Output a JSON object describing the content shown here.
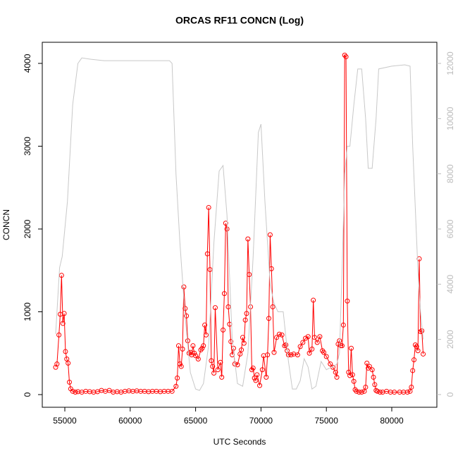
{
  "chart_data": {
    "type": "line",
    "title": "ORCAS RF11 CONCN (Log)",
    "x_label": "UTC Seconds",
    "y_label": "CONCN",
    "xlim": [
      53276,
      83448
    ],
    "ylim": [
      -153,
      4255
    ],
    "y2lim": [
      -460,
      12766
    ],
    "xticks": [
      55000,
      60000,
      65000,
      70000,
      75000,
      80000
    ],
    "yticks": [
      0,
      1000,
      2000,
      3000,
      4000
    ],
    "y2ticks": [
      0,
      2000,
      4000,
      6000,
      8000,
      10000,
      12000
    ],
    "y2_color": "#bbbbbb",
    "series": [
      {
        "color": "#ff0000",
        "markers": true,
        "x": [
          54300,
          54400,
          54550,
          54650,
          54750,
          54850,
          54950,
          55050,
          55150,
          55250,
          55350,
          55450,
          55600,
          55800,
          56000,
          56300,
          56600,
          56900,
          57200,
          57500,
          57800,
          58100,
          58400,
          58700,
          59000,
          59300,
          59600,
          59900,
          60200,
          60500,
          60800,
          61100,
          61400,
          61700,
          62000,
          62300,
          62600,
          62900,
          63200,
          63500,
          63600,
          63700,
          63800,
          63900,
          64000,
          64100,
          64200,
          64300,
          64400,
          64500,
          64600,
          64700,
          64800,
          64900,
          65000,
          65200,
          65400,
          65500,
          65600,
          65700,
          65800,
          65900,
          66000,
          66100,
          66200,
          66300,
          66400,
          66500,
          66700,
          66900,
          67000,
          67100,
          67200,
          67300,
          67400,
          67500,
          67600,
          67700,
          67800,
          67900,
          68000,
          68200,
          68400,
          68500,
          68600,
          68700,
          68800,
          68900,
          69000,
          69100,
          69200,
          69300,
          69400,
          69500,
          69600,
          69700,
          69900,
          70100,
          70200,
          70400,
          70500,
          70600,
          70700,
          70800,
          70900,
          71000,
          71200,
          71400,
          71600,
          71800,
          71900,
          72000,
          72100,
          72300,
          72500,
          72800,
          73000,
          73200,
          73400,
          73600,
          73700,
          73900,
          74000,
          74100,
          74300,
          74500,
          74700,
          74800,
          75000,
          75300,
          75500,
          75700,
          75800,
          75900,
          76000,
          76100,
          76200,
          76300,
          76400,
          76500,
          76600,
          76700,
          76800,
          76900,
          77000,
          77100,
          77200,
          77300,
          77500,
          77700,
          77900,
          78000,
          78100,
          78200,
          78300,
          78500,
          78600,
          78700,
          78800,
          78900,
          79100,
          79300,
          79600,
          79900,
          80200,
          80600,
          80900,
          81200,
          81400,
          81500,
          81600,
          81700,
          81800,
          81900,
          82000,
          82100,
          82200,
          82300,
          82400
        ],
        "values": [
          330,
          370,
          720,
          970,
          1440,
          860,
          980,
          520,
          430,
          380,
          150,
          70,
          40,
          30,
          35,
          30,
          40,
          35,
          30,
          35,
          50,
          40,
          50,
          30,
          35,
          30,
          40,
          45,
          40,
          45,
          40,
          40,
          35,
          40,
          40,
          35,
          40,
          40,
          40,
          100,
          200,
          590,
          370,
          340,
          550,
          1300,
          1040,
          950,
          650,
          500,
          510,
          480,
          590,
          500,
          470,
          430,
          540,
          560,
          590,
          840,
          720,
          1700,
          2260,
          1510,
          410,
          340,
          260,
          1050,
          300,
          390,
          210,
          780,
          1220,
          2070,
          2000,
          1060,
          850,
          640,
          480,
          560,
          370,
          360,
          490,
          540,
          690,
          620,
          900,
          980,
          1880,
          1450,
          1060,
          300,
          320,
          200,
          170,
          240,
          110,
          300,
          470,
          210,
          480,
          920,
          1930,
          1520,
          1060,
          510,
          690,
          730,
          720,
          590,
          600,
          530,
          480,
          480,
          490,
          480,
          580,
          630,
          680,
          700,
          500,
          550,
          1140,
          690,
          630,
          700,
          530,
          510,
          460,
          370,
          330,
          270,
          210,
          610,
          650,
          590,
          590,
          840,
          4100,
          4080,
          1130,
          270,
          230,
          560,
          240,
          160,
          60,
          40,
          30,
          30,
          40,
          90,
          380,
          320,
          340,
          300,
          210,
          120,
          50,
          40,
          30,
          30,
          40,
          30,
          30,
          30,
          30,
          30,
          40,
          90,
          290,
          420,
          600,
          580,
          530,
          1640,
          760,
          770,
          490
        ]
      },
      {
        "color": "#c8c8c8",
        "axis": "y2",
        "markers": false,
        "x": [
          54300,
          54600,
          54800,
          55200,
          55600,
          56000,
          56300,
          57000,
          58000,
          60000,
          62000,
          63000,
          63200,
          63500,
          63800,
          64200,
          64600,
          65000,
          65300,
          65600,
          66000,
          66400,
          66800,
          67100,
          67400,
          67800,
          68200,
          68600,
          69000,
          69400,
          69800,
          70000,
          70300,
          70700,
          71000,
          71300,
          71700,
          72100,
          72400,
          72700,
          73000,
          73300,
          73600,
          73900,
          74200,
          74600,
          75000,
          75400,
          75800,
          76000,
          76200,
          76400,
          76600,
          76800,
          77100,
          77400,
          77700,
          78000,
          78200,
          78500,
          78800,
          79000,
          80000,
          81000,
          81400,
          81600,
          82000,
          82200,
          82400
        ],
        "values": [
          2200,
          4600,
          5000,
          7000,
          10500,
          12000,
          12200,
          12150,
          12100,
          12100,
          12100,
          12100,
          12000,
          8000,
          5500,
          2800,
          800,
          200,
          150,
          400,
          1800,
          5500,
          8100,
          8300,
          6500,
          2000,
          400,
          300,
          1500,
          5000,
          9500,
          9800,
          7000,
          4000,
          3300,
          3000,
          3000,
          1200,
          200,
          200,
          500,
          1300,
          1000,
          200,
          300,
          1200,
          900,
          1000,
          1100,
          1500,
          4500,
          8000,
          9000,
          9000,
          10500,
          11800,
          11800,
          10000,
          8200,
          8200,
          10000,
          11800,
          11900,
          11950,
          11900,
          9000,
          4500,
          3000,
          2000
        ]
      }
    ]
  }
}
